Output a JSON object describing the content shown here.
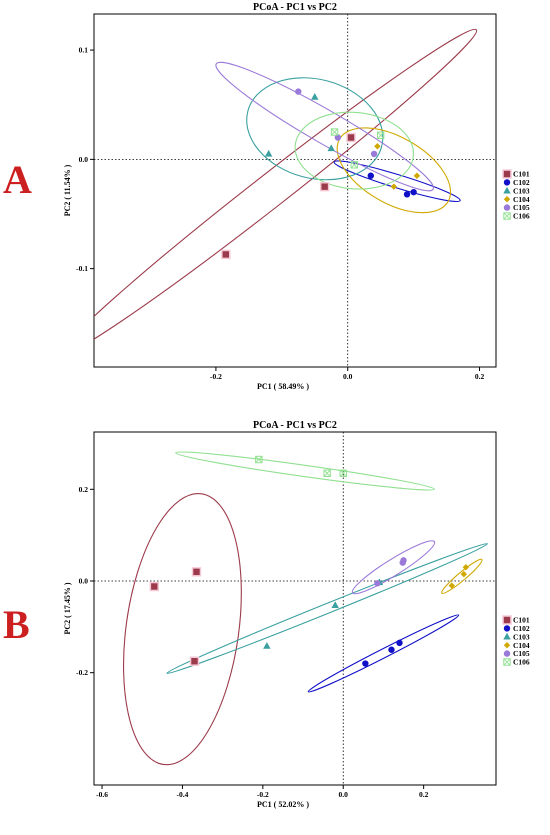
{
  "colors": {
    "C101": "#9b3a4a",
    "C102": "#1010c8",
    "C103": "#3aa0a0",
    "C104": "#d0a800",
    "C105": "#9a7ad8",
    "C106": "#90e090",
    "letter": "#cc2020"
  },
  "chart_data": [
    {
      "type": "scatter",
      "panel_label": "A",
      "title": "PCoA - PC1 vs PC2",
      "xlabel": "PC1 ( 58.49% )",
      "ylabel": "PC2 ( 11.54% )",
      "xlim": [
        -0.385,
        0.225
      ],
      "ylim": [
        -0.19,
        0.133
      ],
      "xticks": [
        -0.2,
        0.0,
        0.2
      ],
      "xtick_labels": [
        "-0.2",
        "0.0",
        "0.2"
      ],
      "yticks": [
        -0.1,
        0.0,
        0.1
      ],
      "ytick_labels": [
        "-0.1",
        "0.0",
        "0.1"
      ],
      "grid": false,
      "zero_lines": true,
      "legend_position": "right",
      "series": [
        {
          "name": "C101",
          "marker": "square",
          "points": [
            [
              0.005,
              0.02
            ],
            [
              -0.035,
              -0.025
            ],
            [
              -0.185,
              -0.087
            ]
          ],
          "ellipse": {
            "cx": -0.12,
            "cy": -0.03,
            "rx": 0.4,
            "ry": 0.025,
            "angle_deg": 38
          }
        },
        {
          "name": "C102",
          "marker": "circle",
          "points": [
            [
              0.035,
              -0.015
            ],
            [
              0.09,
              -0.032
            ],
            [
              0.1,
              -0.03
            ]
          ],
          "ellipse": {
            "cx": 0.075,
            "cy": -0.02,
            "rx": 0.1,
            "ry": 0.01,
            "angle_deg": -17
          }
        },
        {
          "name": "C103",
          "marker": "triangle",
          "points": [
            [
              -0.12,
              0.005
            ],
            [
              -0.05,
              0.057
            ],
            [
              -0.025,
              0.01
            ]
          ],
          "ellipse": {
            "cx": -0.05,
            "cy": 0.028,
            "rx": 0.105,
            "ry": 0.075,
            "angle_deg": -15
          }
        },
        {
          "name": "C104",
          "marker": "diamond",
          "points": [
            [
              0.045,
              0.012
            ],
            [
              0.07,
              -0.025
            ],
            [
              0.105,
              -0.015
            ]
          ],
          "ellipse": {
            "cx": 0.07,
            "cy": -0.01,
            "rx": 0.095,
            "ry": 0.05,
            "angle_deg": -30
          }
        },
        {
          "name": "C105",
          "marker": "circle",
          "points": [
            [
              -0.075,
              0.062
            ],
            [
              -0.015,
              0.02
            ],
            [
              0.04,
              0.005
            ]
          ],
          "ellipse": {
            "cx": -0.035,
            "cy": 0.03,
            "rx": 0.19,
            "ry": 0.025,
            "angle_deg": -30
          }
        },
        {
          "name": "C106",
          "marker": "boxcross",
          "points": [
            [
              -0.02,
              0.025
            ],
            [
              0.01,
              -0.005
            ],
            [
              0.05,
              0.022
            ]
          ],
          "ellipse": {
            "cx": 0.01,
            "cy": 0.008,
            "rx": 0.09,
            "ry": 0.058,
            "angle_deg": -5
          }
        }
      ]
    },
    {
      "type": "scatter",
      "panel_label": "B",
      "title": "PCoA - PC1 vs PC2",
      "xlabel": "PC1 ( 52.02% )",
      "ylabel": "PC2 ( 17.45% )",
      "xlim": [
        -0.62,
        0.38
      ],
      "ylim": [
        -0.445,
        0.325
      ],
      "xticks": [
        -0.6,
        -0.4,
        -0.2,
        0.0,
        0.2
      ],
      "xtick_labels": [
        "-0.6",
        "-0.4",
        "-0.2",
        "0.0",
        "0.2"
      ],
      "yticks": [
        -0.2,
        0.0,
        0.2
      ],
      "ytick_labels": [
        "-0.2",
        "0.0",
        "0.2"
      ],
      "grid": false,
      "zero_lines": true,
      "legend_position": "right",
      "series": [
        {
          "name": "C101",
          "marker": "square",
          "points": [
            [
              -0.47,
              -0.012
            ],
            [
              -0.365,
              0.02
            ],
            [
              -0.37,
              -0.175
            ]
          ],
          "ellipse": {
            "cx": -0.4,
            "cy": -0.105,
            "rx": 0.14,
            "ry": 0.34,
            "angle_deg": -8
          }
        },
        {
          "name": "C102",
          "marker": "circle",
          "points": [
            [
              0.055,
              -0.18
            ],
            [
              0.12,
              -0.15
            ],
            [
              0.14,
              -0.135
            ]
          ],
          "ellipse": {
            "cx": 0.1,
            "cy": -0.158,
            "rx": 0.21,
            "ry": 0.011,
            "angle_deg": 27
          }
        },
        {
          "name": "C103",
          "marker": "triangle",
          "points": [
            [
              -0.19,
              -0.142
            ],
            [
              -0.02,
              -0.053
            ],
            [
              0.09,
              -0.003
            ]
          ],
          "ellipse": {
            "cx": -0.04,
            "cy": -0.06,
            "rx": 0.43,
            "ry": 0.012,
            "angle_deg": 22
          }
        },
        {
          "name": "C104",
          "marker": "diamond",
          "points": [
            [
              0.27,
              -0.01
            ],
            [
              0.3,
              0.015
            ],
            [
              0.305,
              0.03
            ]
          ],
          "ellipse": {
            "cx": 0.295,
            "cy": 0.01,
            "rx": 0.065,
            "ry": 0.01,
            "angle_deg": 40
          }
        },
        {
          "name": "C105",
          "marker": "circle",
          "points": [
            [
              0.085,
              -0.005
            ],
            [
              0.15,
              0.045
            ],
            [
              0.148,
              0.04
            ]
          ],
          "ellipse": {
            "cx": 0.125,
            "cy": 0.03,
            "rx": 0.12,
            "ry": 0.02,
            "angle_deg": 32
          }
        },
        {
          "name": "C106",
          "marker": "boxcross",
          "points": [
            [
              -0.21,
              0.265
            ],
            [
              -0.04,
              0.235
            ],
            [
              0.0,
              0.235
            ]
          ],
          "ellipse": {
            "cx": -0.095,
            "cy": 0.24,
            "rx": 0.325,
            "ry": 0.014,
            "angle_deg": -8
          }
        }
      ]
    }
  ]
}
